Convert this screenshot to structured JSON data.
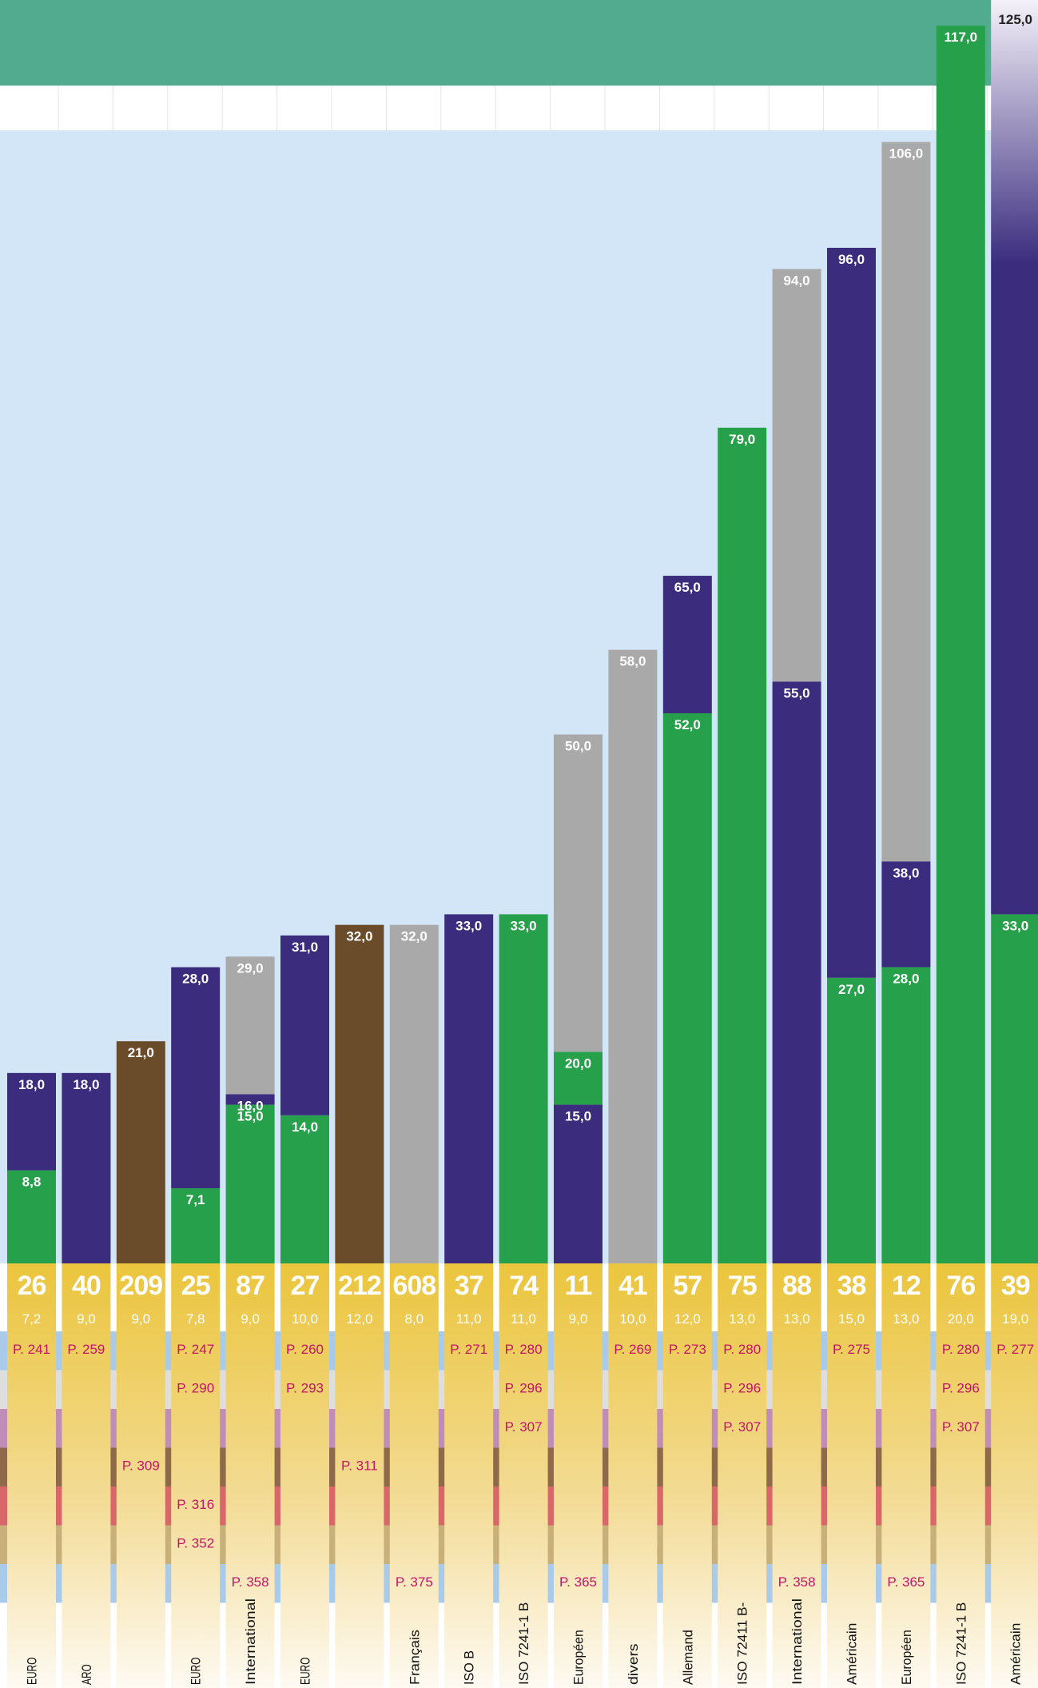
{
  "chart_data": {
    "type": "bar",
    "stacked": true,
    "title": "",
    "xlabel": "",
    "ylabel": "",
    "ylim": [
      0,
      125
    ],
    "colors": {
      "green": "#26a04a",
      "blue": "#3b2c7e",
      "grey": "#a9a9a9",
      "brown": "#6b4c2a",
      "gold": "#ebc33a",
      "panel": "#d2e6f7",
      "header": "#52ab8e",
      "pagelink": "#c4156a"
    },
    "bands": [
      "#a9cbe9",
      "#dedede",
      "#c08db8",
      "#8e6a4a",
      "#d9676a",
      "#c8b07a",
      "#a9cbe9"
    ],
    "columns": [
      {
        "id": "26",
        "a": "7,2",
        "segments": [
          {
            "color": "green",
            "to": 8.8,
            "label": "8,8"
          },
          {
            "color": "blue",
            "to": 18,
            "label": "18,0"
          }
        ],
        "pages": [
          "P. 241",
          "",
          "",
          "",
          "",
          "",
          ""
        ],
        "name": "EURO"
      },
      {
        "id": "40",
        "a": "9,0",
        "segments": [
          {
            "color": "blue",
            "to": 18,
            "label": "18,0"
          }
        ],
        "pages": [
          "P. 259",
          "",
          "",
          "",
          "",
          "",
          ""
        ],
        "name": "ARO"
      },
      {
        "id": "209",
        "a": "9,0",
        "segments": [
          {
            "color": "brown",
            "to": 21,
            "label": "21,0"
          }
        ],
        "pages": [
          "",
          "",
          "",
          "P. 309",
          "",
          "",
          ""
        ],
        "name": ""
      },
      {
        "id": "25",
        "a": "7,8",
        "segments": [
          {
            "color": "green",
            "to": 7.1,
            "label": "7,1"
          },
          {
            "color": "blue",
            "to": 28,
            "label": "28,0"
          }
        ],
        "pages": [
          "P. 247",
          "P. 290",
          "",
          "",
          "P. 316",
          "P. 352",
          ""
        ],
        "name": "EURO"
      },
      {
        "id": "87",
        "a": "9,0",
        "segments": [
          {
            "color": "green",
            "to": 15,
            "label": "15,0"
          },
          {
            "color": "blue",
            "to": 16,
            "label": "16,0"
          },
          {
            "color": "grey",
            "to": 29,
            "label": "29,0"
          }
        ],
        "pages": [
          "",
          "",
          "",
          "",
          "",
          "",
          "P. 358"
        ],
        "name": "International"
      },
      {
        "id": "27",
        "a": "10,0",
        "segments": [
          {
            "color": "green",
            "to": 14,
            "label": "14,0"
          },
          {
            "color": "blue",
            "to": 31,
            "label": "31,0"
          }
        ],
        "pages": [
          "P. 260",
          "P. 293",
          "",
          "",
          "",
          "",
          ""
        ],
        "name": "EURO"
      },
      {
        "id": "212",
        "a": "12,0",
        "segments": [
          {
            "color": "brown",
            "to": 32,
            "label": "32,0"
          }
        ],
        "pages": [
          "",
          "",
          "",
          "P. 311",
          "",
          "",
          ""
        ],
        "name": ""
      },
      {
        "id": "608",
        "a": "8,0",
        "segments": [
          {
            "color": "grey",
            "to": 32,
            "label": "32,0"
          }
        ],
        "pages": [
          "",
          "",
          "",
          "",
          "",
          "",
          "P. 375"
        ],
        "name": "Français"
      },
      {
        "id": "37",
        "a": "11,0",
        "segments": [
          {
            "color": "blue",
            "to": 33,
            "label": "33,0"
          }
        ],
        "pages": [
          "P. 271",
          "",
          "",
          "",
          "",
          "",
          ""
        ],
        "name": "ISO B"
      },
      {
        "id": "74",
        "a": "11,0",
        "segments": [
          {
            "color": "green",
            "to": 33,
            "label": "33,0"
          }
        ],
        "pages": [
          "P. 280",
          "P. 296",
          "P. 307",
          "",
          "",
          "",
          ""
        ],
        "name": "ISO 7241-1 B"
      },
      {
        "id": "11",
        "a": "9,0",
        "segments": [
          {
            "color": "blue",
            "to": 15,
            "label": "15,0"
          },
          {
            "color": "green",
            "to": 20,
            "label": "20,0"
          },
          {
            "color": "grey",
            "to": 50,
            "label": "50,0"
          }
        ],
        "pages": [
          "",
          "",
          "",
          "",
          "",
          "",
          "P. 365"
        ],
        "name": "Européen"
      },
      {
        "id": "41",
        "a": "10,0",
        "segments": [
          {
            "color": "grey",
            "to": 58,
            "label": "58,0"
          }
        ],
        "pages": [
          "P. 269",
          "",
          "",
          "",
          "",
          "",
          ""
        ],
        "name": "divers"
      },
      {
        "id": "57",
        "a": "12,0",
        "segments": [
          {
            "color": "green",
            "to": 52,
            "label": "52,0"
          },
          {
            "color": "blue",
            "to": 65,
            "label": "65,0"
          }
        ],
        "pages": [
          "P. 273",
          "",
          "",
          "",
          "",
          "",
          ""
        ],
        "name": "Allemand"
      },
      {
        "id": "75",
        "a": "13,0",
        "segments": [
          {
            "color": "green",
            "to": 79,
            "label": "79,0"
          }
        ],
        "pages": [
          "P. 280",
          "P. 296",
          "P. 307",
          "",
          "",
          "",
          ""
        ],
        "name": "ISO 72411 B-"
      },
      {
        "id": "88",
        "a": "13,0",
        "segments": [
          {
            "color": "blue",
            "to": 55,
            "label": "55,0"
          },
          {
            "color": "grey",
            "to": 94,
            "label": "94,0"
          }
        ],
        "pages": [
          "",
          "",
          "",
          "",
          "",
          "",
          "P. 358"
        ],
        "name": "International"
      },
      {
        "id": "38",
        "a": "15,0",
        "segments": [
          {
            "color": "green",
            "to": 27,
            "label": "27,0"
          },
          {
            "color": "blue",
            "to": 96,
            "label": "96,0"
          }
        ],
        "pages": [
          "P. 275",
          "",
          "",
          "",
          "",
          "",
          ""
        ],
        "name": "Américain"
      },
      {
        "id": "12",
        "a": "13,0",
        "segments": [
          {
            "color": "green",
            "to": 28,
            "label": "28,0"
          },
          {
            "color": "blue",
            "to": 38,
            "label": "38,0"
          },
          {
            "color": "grey",
            "to": 106,
            "label": "106,0"
          }
        ],
        "pages": [
          "",
          "",
          "",
          "",
          "",
          "",
          "P. 365"
        ],
        "name": "Européen"
      },
      {
        "id": "76",
        "a": "20,0",
        "segments": [
          {
            "color": "green",
            "to": 117,
            "label": "117,0"
          }
        ],
        "pages": [
          "P. 280",
          "P. 296",
          "P. 307",
          "",
          "",
          "",
          ""
        ],
        "name": "ISO 7241-1 B"
      },
      {
        "id": "39",
        "a": "19,0",
        "segments": [
          {
            "color": "green",
            "to": 33,
            "label": "33,0"
          },
          {
            "color": "blue",
            "to": 125,
            "label": "125,0"
          }
        ],
        "pages": [
          "P. 277",
          "",
          "",
          "",
          "",
          "",
          ""
        ],
        "name": "Américain"
      }
    ]
  }
}
